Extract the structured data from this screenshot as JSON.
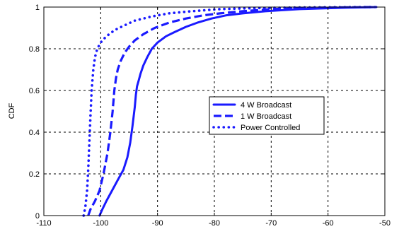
{
  "chart_data": {
    "type": "line",
    "title": "",
    "xlabel": "",
    "ylabel": "CDF",
    "xlim": [
      -110,
      -50
    ],
    "ylim": [
      0,
      1
    ],
    "xticks": [
      -110,
      -100,
      -90,
      -80,
      -70,
      -60,
      -50
    ],
    "yticks": [
      0,
      0.2,
      0.4,
      0.6,
      0.8,
      1
    ],
    "xtick_labels": [
      "-110",
      "-100",
      "-90",
      "-80",
      "-70",
      "-60",
      "-50"
    ],
    "ytick_labels": [
      "0",
      "0.2",
      "0.4",
      "0.6",
      "0.8",
      "1"
    ],
    "grid": true,
    "legend_position": "center-right",
    "line_color": "#1a1aff",
    "series": [
      {
        "name": "4 W Broadcast",
        "style": "solid",
        "x": [
          -100.2,
          -99.7,
          -99.0,
          -98.0,
          -97.0,
          -96.0,
          -95.3,
          -94.8,
          -94.4,
          -94.0,
          -93.8,
          -93.6,
          -93.3,
          -93.0,
          -92.5,
          -91.8,
          -91.0,
          -90.0,
          -88.5,
          -87.0,
          -85.0,
          -83.0,
          -80.5,
          -78.0,
          -75.0,
          -71.0,
          -65.0,
          -57.0,
          -51.5
        ],
        "y": [
          0.0,
          0.03,
          0.07,
          0.12,
          0.17,
          0.22,
          0.28,
          0.35,
          0.43,
          0.52,
          0.58,
          0.62,
          0.65,
          0.68,
          0.72,
          0.76,
          0.8,
          0.83,
          0.86,
          0.88,
          0.905,
          0.925,
          0.945,
          0.96,
          0.97,
          0.98,
          0.99,
          0.997,
          1.0
        ]
      },
      {
        "name": "1 W Broadcast",
        "style": "dashed",
        "x": [
          -102.2,
          -101.8,
          -101.0,
          -100.2,
          -99.5,
          -98.8,
          -98.3,
          -97.9,
          -97.6,
          -97.3,
          -97.0,
          -96.5,
          -95.8,
          -95.0,
          -94.0,
          -92.5,
          -90.5,
          -88.0,
          -85.0,
          -82.0,
          -79.0,
          -75.0,
          -70.0,
          -62.0,
          -52.0
        ],
        "y": [
          0.0,
          0.03,
          0.07,
          0.12,
          0.2,
          0.3,
          0.4,
          0.5,
          0.6,
          0.66,
          0.7,
          0.74,
          0.78,
          0.81,
          0.84,
          0.87,
          0.9,
          0.925,
          0.945,
          0.96,
          0.97,
          0.98,
          0.99,
          0.997,
          1.0
        ]
      },
      {
        "name": "Power Controlled",
        "style": "dotted",
        "x": [
          -103.0,
          -102.7,
          -102.4,
          -102.2,
          -102.0,
          -101.8,
          -101.6,
          -101.3,
          -101.0,
          -100.6,
          -100.0,
          -99.0,
          -97.5,
          -96.0,
          -94.0,
          -91.0,
          -88.0,
          -84.0,
          -79.0,
          -73.0,
          -65.0,
          -55.0,
          -51.5
        ],
        "y": [
          0.0,
          0.04,
          0.12,
          0.22,
          0.35,
          0.48,
          0.6,
          0.7,
          0.76,
          0.8,
          0.83,
          0.86,
          0.89,
          0.91,
          0.935,
          0.955,
          0.97,
          0.98,
          0.99,
          0.995,
          0.998,
          1.0,
          1.0
        ]
      }
    ]
  }
}
